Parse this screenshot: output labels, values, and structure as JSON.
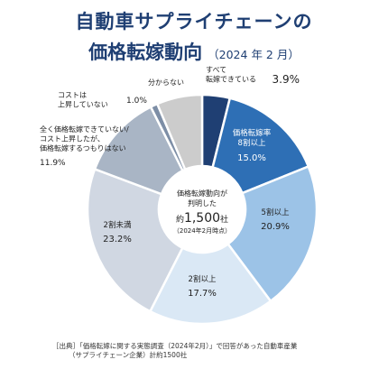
{
  "title_line1": "自動車サプライチェーンの",
  "title_line2": "価格転嫁動向",
  "title_note": "（2024 年 2 月）",
  "center": {
    "line1": "価格転嫁動向が",
    "line2": "判明した",
    "prefix": "約",
    "count": "1,500",
    "suffix": "社",
    "note": "（2024年2月時点）"
  },
  "source_line1": "［出典］「価格転嫁に関する実態調査（2024年2月）」で回答があった自動車産業",
  "source_line2": "（サプライチェーン企業）計約1500社",
  "chart_data": {
    "type": "pie",
    "unit": "%",
    "slices": [
      {
        "label": "すべて転嫁できている",
        "label_lines": [
          "すべて",
          "転嫁できている"
        ],
        "value": 3.9,
        "value_label": "3.9%",
        "color": "#1f3f73"
      },
      {
        "label": "価格転嫁率8割以上",
        "label_lines": [
          "価格転嫁率",
          "8割以上"
        ],
        "value": 15.0,
        "value_label": "15.0%",
        "color": "#2e6fb5"
      },
      {
        "label": "5割以上",
        "label_lines": [
          "5割以上"
        ],
        "value": 20.9,
        "value_label": "20.9%",
        "color": "#9cc3e7"
      },
      {
        "label": "2割以上",
        "label_lines": [
          "2割以上"
        ],
        "value": 17.7,
        "value_label": "17.7%",
        "color": "#dae8f5"
      },
      {
        "label": "2割未満",
        "label_lines": [
          "2割未満"
        ],
        "value": 23.2,
        "value_label": "23.2%",
        "color": "#d0d7e2"
      },
      {
        "label": "全く価格転嫁できていない/コスト上昇したが、価格転嫁するつもりはない",
        "label_lines": [
          "全く価格転嫁できていない/",
          "コスト上昇したが、",
          "価格転嫁するつもりはない"
        ],
        "value": 11.9,
        "value_label": "11.9%",
        "color": "#a9b5c5"
      },
      {
        "label": "コストは上昇していない",
        "label_lines": [
          "コストは",
          "上昇していない"
        ],
        "value": 1.0,
        "value_label": "1.0%",
        "color": "#7d8ea6"
      },
      {
        "label": "分からない",
        "label_lines": [
          "分からない"
        ],
        "value": 6.4,
        "value_label": "",
        "color": "#cccccc"
      }
    ]
  }
}
